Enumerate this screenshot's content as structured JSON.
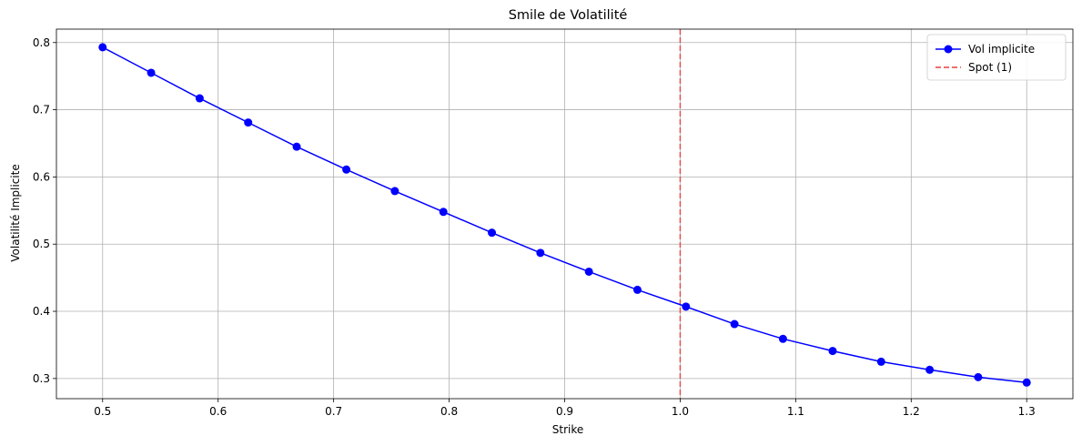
{
  "chart_data": {
    "type": "line",
    "title": "Smile de Volatilité",
    "xlabel": "Strike",
    "ylabel": "Volatilité Implicite",
    "xlim": [
      0.46,
      1.34
    ],
    "ylim": [
      0.27,
      0.82
    ],
    "xticks": [
      0.5,
      0.6,
      0.7,
      0.8,
      0.9,
      1.0,
      1.1,
      1.2,
      1.3
    ],
    "xtick_labels": [
      "0.5",
      "0.6",
      "0.7",
      "0.8",
      "0.9",
      "1.0",
      "1.1",
      "1.2",
      "1.3"
    ],
    "yticks": [
      0.3,
      0.4,
      0.5,
      0.6,
      0.7,
      0.8
    ],
    "ytick_labels": [
      "0.3",
      "0.4",
      "0.5",
      "0.6",
      "0.7",
      "0.8"
    ],
    "grid": true,
    "legend_position": "top-right",
    "series": [
      {
        "name": "Vol implicite",
        "color": "#0000ff",
        "marker": "circle",
        "x": [
          0.5,
          0.542,
          0.584,
          0.626,
          0.668,
          0.711,
          0.753,
          0.795,
          0.837,
          0.879,
          0.921,
          0.963,
          1.005,
          1.047,
          1.089,
          1.132,
          1.174,
          1.216,
          1.258,
          1.3
        ],
        "y": [
          0.793,
          0.755,
          0.717,
          0.681,
          0.645,
          0.611,
          0.579,
          0.548,
          0.517,
          0.487,
          0.459,
          0.432,
          0.407,
          0.381,
          0.359,
          0.341,
          0.325,
          0.313,
          0.302,
          0.294
        ]
      }
    ],
    "reference_lines": [
      {
        "name": "Spot (1)",
        "orientation": "vertical",
        "x": 1.0,
        "color": "#e8413f",
        "style": "dashed"
      }
    ]
  }
}
